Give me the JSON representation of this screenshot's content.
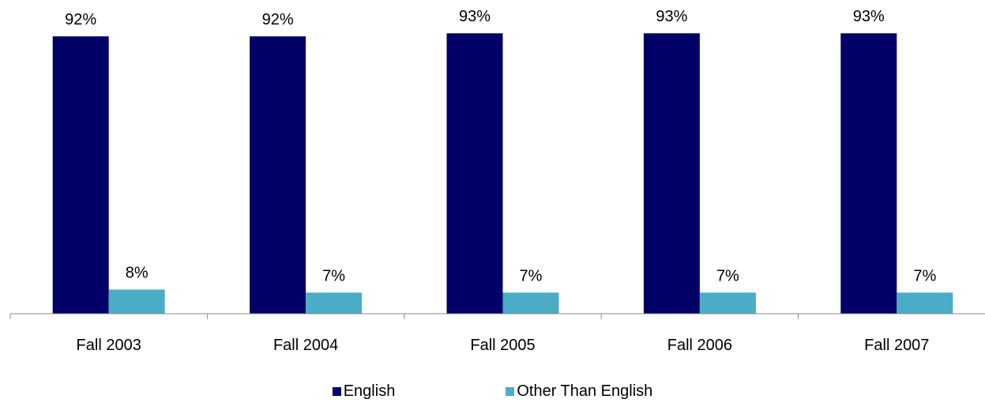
{
  "chart_data": {
    "type": "bar",
    "title": "",
    "xlabel": "",
    "ylabel": "",
    "categories": [
      "Fall 2003",
      "Fall 2004",
      "Fall 2005",
      "Fall 2006",
      "Fall 2007"
    ],
    "series": [
      {
        "name": "English",
        "color": "#000066",
        "values": [
          92,
          92,
          93,
          93,
          93
        ],
        "labels": [
          "92%",
          "92%",
          "93%",
          "93%",
          "93%"
        ]
      },
      {
        "name": "Other Than English",
        "color": "#4BACC6",
        "values": [
          8,
          7,
          7,
          7,
          7
        ],
        "labels": [
          "8%",
          "7%",
          "7%",
          "7%",
          "7%"
        ]
      }
    ],
    "ylim": [
      0,
      92
    ],
    "grid": false,
    "legend_position": "bottom"
  }
}
